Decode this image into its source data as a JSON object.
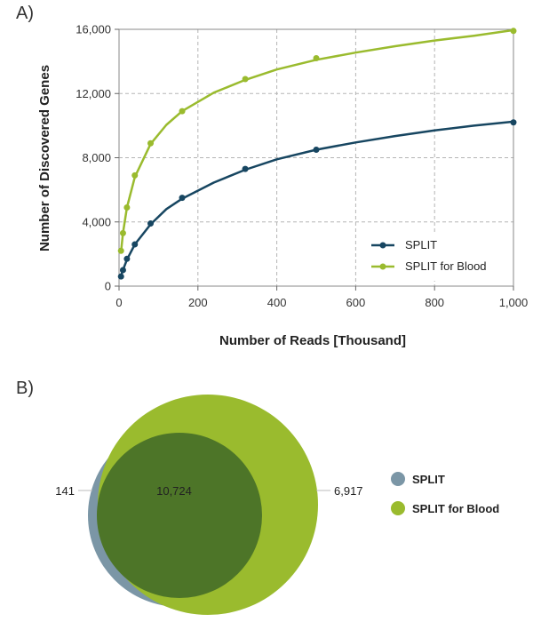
{
  "panels": {
    "a": "A)",
    "b": "B)"
  },
  "chart_data": [
    {
      "type": "line",
      "xlabel": "Number of Reads [Thousand]",
      "ylabel": "Number of Discovered Genes",
      "xlim": [
        0,
        1000
      ],
      "ylim": [
        0,
        16000
      ],
      "x_ticks": [
        0,
        200,
        400,
        600,
        800,
        1000
      ],
      "x_tick_labels": [
        "0",
        "200",
        "400",
        "600",
        "800",
        "1,000"
      ],
      "y_ticks": [
        0,
        4000,
        8000,
        12000,
        16000
      ],
      "y_tick_labels": [
        "0",
        "4,000",
        "8,000",
        "12,000",
        "16,000"
      ],
      "grid": true,
      "legend": "bottom-right",
      "series": [
        {
          "name": "SPLIT",
          "color": "#174661",
          "points": [
            [
              5,
              600
            ],
            [
              10,
              1000
            ],
            [
              20,
              1700
            ],
            [
              40,
              2600
            ],
            [
              80,
              3900
            ],
            [
              160,
              5500
            ],
            [
              320,
              7300
            ],
            [
              500,
              8500
            ],
            [
              1000,
              10200
            ]
          ],
          "fit": [
            [
              5,
              650
            ],
            [
              10,
              1000
            ],
            [
              20,
              1650
            ],
            [
              40,
              2600
            ],
            [
              80,
              3850
            ],
            [
              120,
              4800
            ],
            [
              160,
              5450
            ],
            [
              240,
              6450
            ],
            [
              320,
              7250
            ],
            [
              400,
              7900
            ],
            [
              500,
              8500
            ],
            [
              600,
              8950
            ],
            [
              700,
              9350
            ],
            [
              800,
              9700
            ],
            [
              900,
              10000
            ],
            [
              1000,
              10250
            ]
          ]
        },
        {
          "name": "SPLIT for Blood",
          "color": "#9abb2e",
          "points": [
            [
              5,
              2200
            ],
            [
              10,
              3300
            ],
            [
              20,
              4900
            ],
            [
              40,
              6900
            ],
            [
              80,
              8900
            ],
            [
              160,
              10900
            ],
            [
              320,
              12900
            ],
            [
              500,
              14200
            ],
            [
              1000,
              15900
            ]
          ],
          "fit": [
            [
              5,
              2100
            ],
            [
              10,
              3300
            ],
            [
              20,
              4900
            ],
            [
              40,
              6800
            ],
            [
              80,
              8850
            ],
            [
              120,
              10050
            ],
            [
              160,
              10900
            ],
            [
              240,
              12050
            ],
            [
              320,
              12850
            ],
            [
              400,
              13500
            ],
            [
              500,
              14100
            ],
            [
              600,
              14550
            ],
            [
              700,
              14950
            ],
            [
              800,
              15300
            ],
            [
              900,
              15600
            ],
            [
              1000,
              15950
            ]
          ]
        }
      ]
    },
    {
      "type": "venn",
      "sets": [
        {
          "name": "SPLIT",
          "only": "141",
          "color": "#7b96a6"
        },
        {
          "name": "SPLIT for Blood",
          "only": "6,917",
          "color": "#9abb2e"
        }
      ],
      "intersection": "10,724",
      "intersection_color": "#4d7528",
      "legend": "right"
    }
  ]
}
